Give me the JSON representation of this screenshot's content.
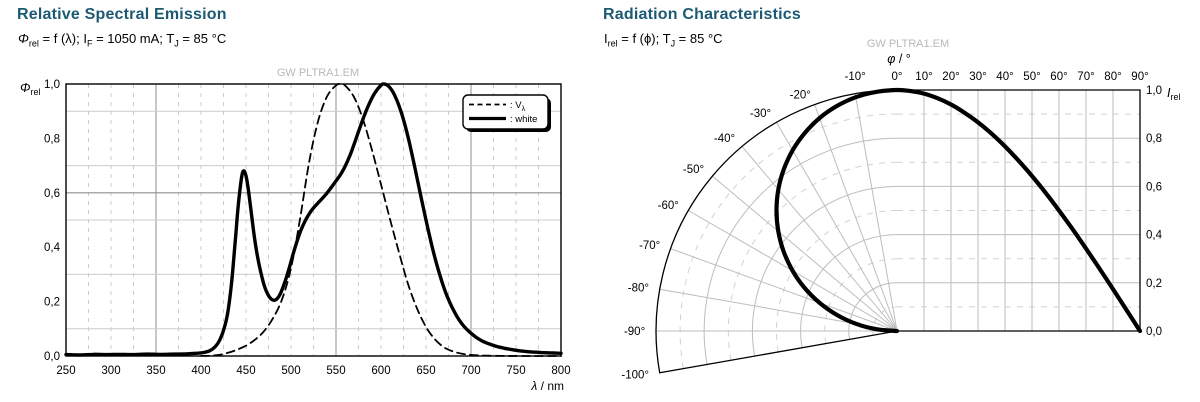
{
  "colors": {
    "title": "#1c5a74",
    "text": "#000000",
    "watermark": "#b9b9b9",
    "grid_light": "#cccccc",
    "grid_dark": "#8f8f8f",
    "curve": "#000000"
  },
  "left_chart": {
    "title": "Relative Spectral Emission",
    "subtitle": "*Φ*_{rel} = f (λ); I_{F} = 1050 mA; T_{J} = 85 °C",
    "watermark": "GW PLTRA1.EM",
    "y_axis_symbol": "*Φ*_{rel}",
    "x_axis_label": "*λ* / nm",
    "x_tick_labels": [
      "250",
      "300",
      "350",
      "400",
      "450",
      "500",
      "550",
      "600",
      "650",
      "700",
      "750",
      "800"
    ],
    "y_tick_labels": [
      {
        "v": 1.0,
        "label": "1,0"
      },
      {
        "v": 0.8,
        "label": "0,8"
      },
      {
        "v": 0.6,
        "label": "0,6"
      },
      {
        "v": 0.4,
        "label": "0,4"
      },
      {
        "v": 0.2,
        "label": "0,2"
      },
      {
        "v": 0.0,
        "label": "0,0"
      }
    ],
    "legend": {
      "items": [
        {
          "style": "dashed",
          "label": ": V_{λ}"
        },
        {
          "style": "solid",
          "label": ": white"
        }
      ]
    },
    "chart_data": {
      "type": "line",
      "title": "Relative Spectral Emission",
      "xlabel": "λ / nm",
      "ylabel": "Φrel",
      "xlim": [
        250,
        800
      ],
      "ylim": [
        0,
        1
      ],
      "x_major_ticks": [
        250,
        300,
        350,
        400,
        450,
        500,
        550,
        600,
        650,
        700,
        750,
        800
      ],
      "grid": {
        "dashed_x_step": 25,
        "solid_x": [
          350,
          550,
          700
        ],
        "light_y": [
          0.1,
          0.3,
          0.5,
          0.7,
          0.9
        ],
        "dark_y": [
          0.6
        ]
      },
      "series": [
        {
          "name": "Vλ",
          "line": "dashed",
          "points": [
            [
              400,
              0.0004
            ],
            [
              410,
              0.0012
            ],
            [
              420,
              0.004
            ],
            [
              430,
              0.0116
            ],
            [
              440,
              0.023
            ],
            [
              450,
              0.038
            ],
            [
              460,
              0.06
            ],
            [
              470,
              0.091
            ],
            [
              480,
              0.139
            ],
            [
              490,
              0.208
            ],
            [
              500,
              0.323
            ],
            [
              510,
              0.503
            ],
            [
              520,
              0.71
            ],
            [
              530,
              0.862
            ],
            [
              540,
              0.954
            ],
            [
              550,
              0.995
            ],
            [
              555,
              1.0
            ],
            [
              560,
              0.995
            ],
            [
              570,
              0.952
            ],
            [
              580,
              0.87
            ],
            [
              590,
              0.757
            ],
            [
              600,
              0.631
            ],
            [
              610,
              0.503
            ],
            [
              620,
              0.381
            ],
            [
              630,
              0.265
            ],
            [
              640,
              0.175
            ],
            [
              650,
              0.107
            ],
            [
              660,
              0.061
            ],
            [
              670,
              0.032
            ],
            [
              680,
              0.017
            ],
            [
              690,
              0.0082
            ],
            [
              700,
              0.0041
            ],
            [
              710,
              0.0021
            ],
            [
              720,
              0.001
            ],
            [
              740,
              0.0003
            ],
            [
              760,
              0.0001
            ],
            [
              780,
              5e-05
            ],
            [
              800,
              3e-05
            ]
          ]
        },
        {
          "name": "white",
          "line": "solid",
          "points": [
            [
              250,
              0.005
            ],
            [
              265,
              0.004
            ],
            [
              280,
              0.006
            ],
            [
              295,
              0.005
            ],
            [
              310,
              0.006
            ],
            [
              325,
              0.005
            ],
            [
              340,
              0.007
            ],
            [
              355,
              0.006
            ],
            [
              370,
              0.007
            ],
            [
              385,
              0.008
            ],
            [
              395,
              0.01
            ],
            [
              403,
              0.013
            ],
            [
              410,
              0.02
            ],
            [
              416,
              0.035
            ],
            [
              421,
              0.06
            ],
            [
              426,
              0.105
            ],
            [
              430,
              0.165
            ],
            [
              434,
              0.27
            ],
            [
              438,
              0.42
            ],
            [
              441,
              0.54
            ],
            [
              444,
              0.63
            ],
            [
              446,
              0.672
            ],
            [
              448,
              0.68
            ],
            [
              450,
              0.662
            ],
            [
              452,
              0.625
            ],
            [
              455,
              0.55
            ],
            [
              458,
              0.47
            ],
            [
              461,
              0.4
            ],
            [
              464,
              0.345
            ],
            [
              467,
              0.3
            ],
            [
              470,
              0.262
            ],
            [
              473,
              0.235
            ],
            [
              476,
              0.217
            ],
            [
              479,
              0.207
            ],
            [
              482,
              0.205
            ],
            [
              485,
              0.212
            ],
            [
              488,
              0.228
            ],
            [
              491,
              0.252
            ],
            [
              495,
              0.29
            ],
            [
              499,
              0.335
            ],
            [
              503,
              0.382
            ],
            [
              507,
              0.425
            ],
            [
              511,
              0.462
            ],
            [
              515,
              0.492
            ],
            [
              519,
              0.516
            ],
            [
              523,
              0.536
            ],
            [
              527,
              0.552
            ],
            [
              531,
              0.566
            ],
            [
              535,
              0.58
            ],
            [
              539,
              0.595
            ],
            [
              543,
              0.612
            ],
            [
              547,
              0.63
            ],
            [
              551,
              0.648
            ],
            [
              555,
              0.667
            ],
            [
              559,
              0.69
            ],
            [
              563,
              0.718
            ],
            [
              567,
              0.75
            ],
            [
              571,
              0.787
            ],
            [
              575,
              0.825
            ],
            [
              579,
              0.862
            ],
            [
              583,
              0.897
            ],
            [
              587,
              0.928
            ],
            [
              591,
              0.955
            ],
            [
              595,
              0.976
            ],
            [
              599,
              0.992
            ],
            [
              602,
              1.0
            ],
            [
              605,
              0.999
            ],
            [
              608,
              0.993
            ],
            [
              611,
              0.982
            ],
            [
              614,
              0.966
            ],
            [
              617,
              0.945
            ],
            [
              620,
              0.92
            ],
            [
              624,
              0.88
            ],
            [
              628,
              0.832
            ],
            [
              632,
              0.778
            ],
            [
              636,
              0.718
            ],
            [
              640,
              0.655
            ],
            [
              644,
              0.592
            ],
            [
              648,
              0.53
            ],
            [
              652,
              0.47
            ],
            [
              656,
              0.413
            ],
            [
              660,
              0.36
            ],
            [
              664,
              0.313
            ],
            [
              668,
              0.27
            ],
            [
              672,
              0.232
            ],
            [
              676,
              0.2
            ],
            [
              680,
              0.172
            ],
            [
              685,
              0.142
            ],
            [
              690,
              0.118
            ],
            [
              695,
              0.099
            ],
            [
              700,
              0.084
            ],
            [
              706,
              0.068
            ],
            [
              712,
              0.056
            ],
            [
              718,
              0.047
            ],
            [
              724,
              0.04
            ],
            [
              730,
              0.034
            ],
            [
              738,
              0.028
            ],
            [
              746,
              0.023
            ],
            [
              754,
              0.019
            ],
            [
              762,
              0.016
            ],
            [
              772,
              0.014
            ],
            [
              782,
              0.012
            ],
            [
              792,
              0.011
            ],
            [
              800,
              0.01
            ]
          ]
        }
      ]
    }
  },
  "right_chart": {
    "title": "Radiation Characteristics",
    "subtitle": "I_{rel} = f (ϕ); T_{J} = 85 °C",
    "watermark": "GW PLTRA1.EM",
    "top_axis_label": "*φ* / °",
    "radial_axis_label": "*I*_{rel}",
    "top_angle_labels": [
      {
        "deg": -10,
        "label": "-10°"
      },
      {
        "deg": 0,
        "label": "0°"
      },
      {
        "deg": 10,
        "label": "10°"
      },
      {
        "deg": 20,
        "label": "20°"
      },
      {
        "deg": 30,
        "label": "30°"
      },
      {
        "deg": 40,
        "label": "40°"
      },
      {
        "deg": 50,
        "label": "50°"
      },
      {
        "deg": 60,
        "label": "60°"
      },
      {
        "deg": 70,
        "label": "70°"
      },
      {
        "deg": 80,
        "label": "80°"
      },
      {
        "deg": 90,
        "label": "90°"
      }
    ],
    "arc_angle_labels": [
      {
        "deg": -20,
        "label": "-20°"
      },
      {
        "deg": -30,
        "label": "-30°"
      },
      {
        "deg": -40,
        "label": "-40°"
      },
      {
        "deg": -50,
        "label": "-50°"
      },
      {
        "deg": -60,
        "label": "-60°"
      },
      {
        "deg": -70,
        "label": "-70°"
      },
      {
        "deg": -80,
        "label": "-80°"
      },
      {
        "deg": -90,
        "label": "-90°"
      },
      {
        "deg": -100,
        "label": "-100°"
      }
    ],
    "irel_tick_labels": [
      {
        "v": 1.0,
        "label": "1,0"
      },
      {
        "v": 0.8,
        "label": "0,8"
      },
      {
        "v": 0.6,
        "label": "0,6"
      },
      {
        "v": 0.4,
        "label": "0,4"
      },
      {
        "v": 0.2,
        "label": "0,2"
      },
      {
        "v": 0.0,
        "label": "0,0"
      }
    ],
    "chart_data": {
      "type": "polar-cartesian",
      "description": "Lambertian radiation pattern: left half is a polar lobe (φ from -100° to 0°, r = Irel), right half is cartesian Irel vs φ (0° to 90°)",
      "phi_range_deg": [
        -100,
        90
      ],
      "irel_range": [
        0,
        1
      ],
      "grid": {
        "spoke_step_deg": 10,
        "r_solid": [
          0.2,
          0.4,
          0.6,
          0.8
        ],
        "r_dashed": [
          0.1,
          0.3,
          0.5,
          0.7,
          0.9
        ]
      },
      "values": [
        [
          0,
          1.0
        ],
        [
          5,
          0.996
        ],
        [
          10,
          0.985
        ],
        [
          15,
          0.966
        ],
        [
          20,
          0.94
        ],
        [
          25,
          0.906
        ],
        [
          30,
          0.866
        ],
        [
          35,
          0.819
        ],
        [
          40,
          0.766
        ],
        [
          45,
          0.707
        ],
        [
          50,
          0.643
        ],
        [
          55,
          0.574
        ],
        [
          60,
          0.5
        ],
        [
          65,
          0.423
        ],
        [
          70,
          0.342
        ],
        [
          75,
          0.259
        ],
        [
          80,
          0.174
        ],
        [
          85,
          0.087
        ],
        [
          90,
          0.0
        ]
      ]
    }
  }
}
